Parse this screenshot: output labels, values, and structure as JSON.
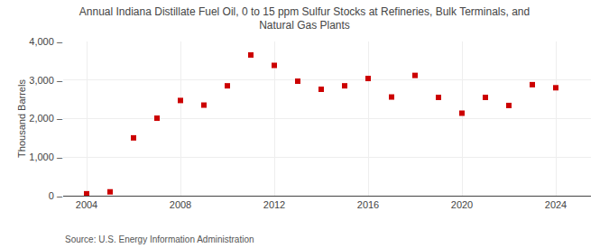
{
  "chart_data": {
    "type": "scatter",
    "title": "Annual Indiana Distillate Fuel Oil, 0 to 15 ppm Sulfur Stocks at Refineries, Bulk Terminals, and\nNatural Gas Plants",
    "y_label": "Thousand Barrels",
    "annotations": [
      "Source: U.S. Energy Information Administration"
    ],
    "x": [
      2004,
      2005,
      2006,
      2007,
      2008,
      2009,
      2010,
      2011,
      2012,
      2013,
      2014,
      2015,
      2016,
      2017,
      2018,
      2019,
      2020,
      2021,
      2022,
      2023,
      2024
    ],
    "values": [
      50,
      100,
      1500,
      2010,
      2470,
      2350,
      2850,
      3650,
      3380,
      2970,
      2760,
      2850,
      3040,
      2560,
      3120,
      2550,
      2140,
      2550,
      2340,
      2880,
      2800
    ],
    "color": "#cc0000",
    "marker": "square",
    "xlim": [
      2003.0,
      2025.5
    ],
    "xticks": [
      2004,
      2008,
      2012,
      2016,
      2020,
      2024
    ],
    "ylim": [
      0,
      4000
    ],
    "yticks": [
      {
        "value": 0,
        "label": "0 –"
      },
      {
        "value": 1000,
        "label": "1,000 –"
      },
      {
        "value": 2000,
        "label": "2,000 –"
      },
      {
        "value": 3000,
        "label": "3,000 –"
      },
      {
        "value": 4000,
        "label": "4,000 –"
      }
    ],
    "grid": true
  }
}
